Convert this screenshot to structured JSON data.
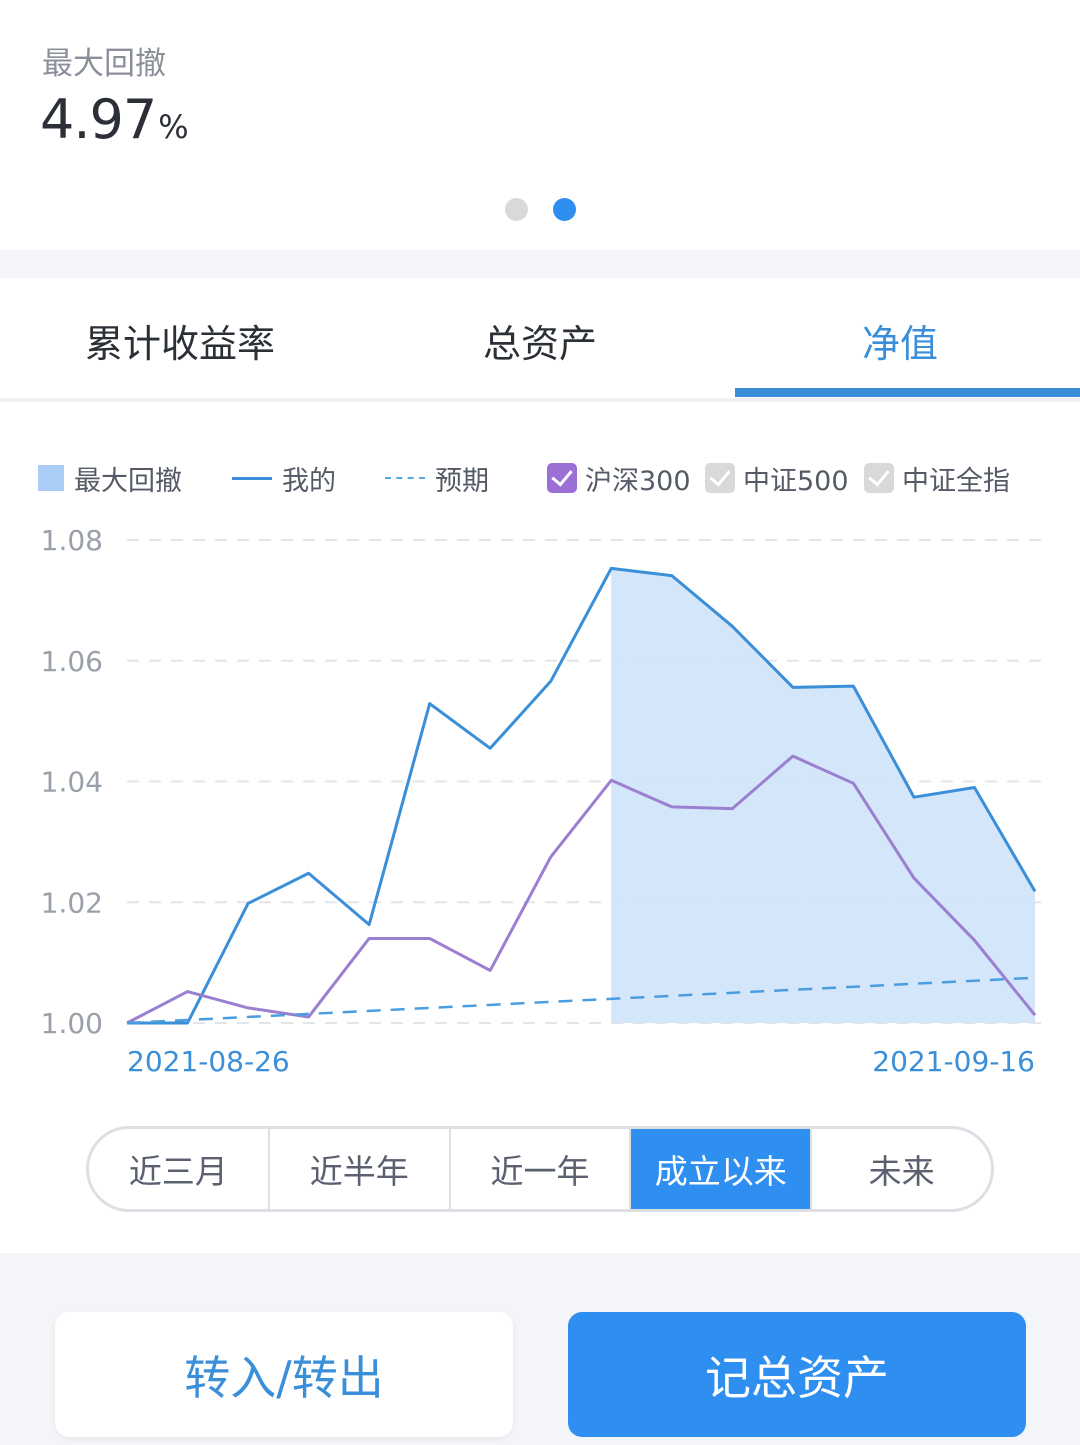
{
  "metric": {
    "label": "最大回撤",
    "value": "4.97",
    "unit": "%"
  },
  "pager": {
    "count": 2,
    "active_index": 1
  },
  "tabs": [
    {
      "label": "累计收益率",
      "active": false
    },
    {
      "label": "总资产",
      "active": false
    },
    {
      "label": "净值",
      "active": true
    }
  ],
  "legend": {
    "max_drawdown": "最大回撤",
    "mine": "我的",
    "expected": "预期",
    "hs300": {
      "label": "沪深300",
      "checked": true
    },
    "zz500": {
      "label": "中证500",
      "checked": false
    },
    "zzqz": {
      "label": "中证全指",
      "checked": false
    }
  },
  "chart_data": {
    "type": "line",
    "yticks": [
      "1.08",
      "1.06",
      "1.04",
      "1.02",
      "1.00"
    ],
    "ylim": [
      1.0,
      1.08
    ],
    "x_start_label": "2021-08-26",
    "x_end_label": "2021-09-16",
    "grid": true,
    "series": [
      {
        "name": "我的",
        "color": "#3a8fd8",
        "values": [
          1.0,
          1.0,
          1.0198,
          1.0248,
          1.0163,
          1.0529,
          1.0455,
          1.0566,
          1.0753,
          1.0741,
          1.0657,
          1.0556,
          1.0558,
          1.0374,
          1.039,
          1.0218
        ]
      },
      {
        "name": "沪深300",
        "color": "#9b7fd0",
        "values": [
          1.0,
          1.0052,
          1.0025,
          1.001,
          1.014,
          1.014,
          1.0087,
          1.0275,
          1.0402,
          1.0358,
          1.0355,
          1.0442,
          1.0397,
          1.024,
          1.0137,
          1.0013
        ]
      },
      {
        "name": "预期",
        "color": "#4a9ee0",
        "dashed": true,
        "values": [
          1.0,
          1.0075
        ]
      }
    ],
    "max_drawdown": {
      "start_index": 8,
      "end_index": 15
    }
  },
  "periods": [
    {
      "label": "近三月",
      "active": false
    },
    {
      "label": "近半年",
      "active": false
    },
    {
      "label": "近一年",
      "active": false
    },
    {
      "label": "成立以来",
      "active": true
    },
    {
      "label": "未来",
      "active": false
    }
  ],
  "buttons": {
    "transfer": "转入/转出",
    "record": "记总资产"
  }
}
